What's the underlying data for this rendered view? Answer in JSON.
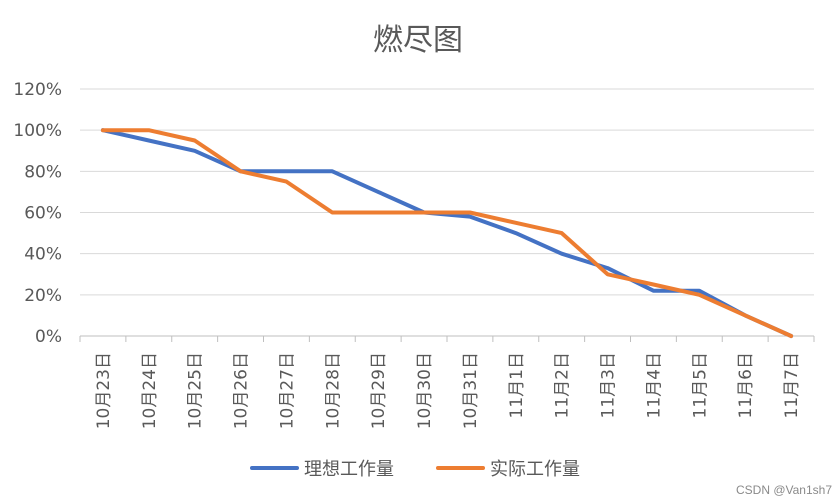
{
  "chart_data": {
    "type": "line",
    "title": "燃尽图",
    "xlabel": "",
    "ylabel": "",
    "categories": [
      "10月23日",
      "10月24日",
      "10月25日",
      "10月26日",
      "10月27日",
      "10月28日",
      "10月29日",
      "10月30日",
      "10月31日",
      "11月1日",
      "11月2日",
      "11月3日",
      "11月4日",
      "11月5日",
      "11月6日",
      "11月7日"
    ],
    "y_ticks": [
      "0%",
      "20%",
      "40%",
      "60%",
      "80%",
      "100%",
      "120%"
    ],
    "ylim": [
      0,
      120
    ],
    "grid": true,
    "legend_position": "bottom",
    "series": [
      {
        "name": "理想工作量",
        "color": "#4472C4",
        "values": [
          100,
          95,
          90,
          80,
          80,
          80,
          70,
          60,
          58,
          50,
          40,
          33,
          22,
          22,
          10,
          0
        ]
      },
      {
        "name": "实际工作量",
        "color": "#ED7D31",
        "values": [
          100,
          100,
          95,
          80,
          75,
          60,
          60,
          60,
          60,
          55,
          50,
          30,
          25,
          20,
          10,
          0
        ]
      }
    ]
  },
  "watermark": "CSDN @Van1sh7"
}
